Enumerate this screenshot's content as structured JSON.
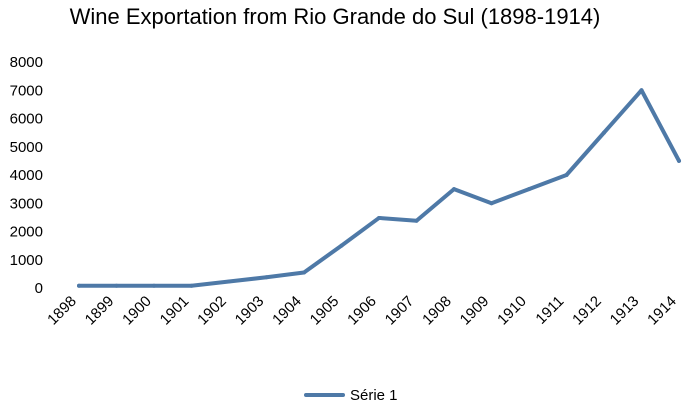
{
  "chart_data": {
    "type": "line",
    "title": "Wine Exportation from Rio Grande do Sul (1898-1914)",
    "xlabel": "",
    "ylabel": "",
    "categories": [
      "1898",
      "1899",
      "1900",
      "1901",
      "1902",
      "1903",
      "1904",
      "1905",
      "1906",
      "1907",
      "1908",
      "1909",
      "1910",
      "1911",
      "1912",
      "1913",
      "1914"
    ],
    "series": [
      {
        "name": "Série 1",
        "color": "#4e79a7",
        "values": [
          80,
          80,
          80,
          80,
          230,
          380,
          550,
          1500,
          2480,
          2380,
          3500,
          3000,
          3500,
          4000,
          5500,
          7000,
          4500
        ]
      }
    ],
    "ylim": [
      0,
      8000
    ],
    "yticks": [
      "0",
      "1000",
      "2000",
      "3000",
      "4000",
      "5000",
      "6000",
      "7000",
      "8000"
    ],
    "grid": false,
    "legend_position": "bottom"
  }
}
